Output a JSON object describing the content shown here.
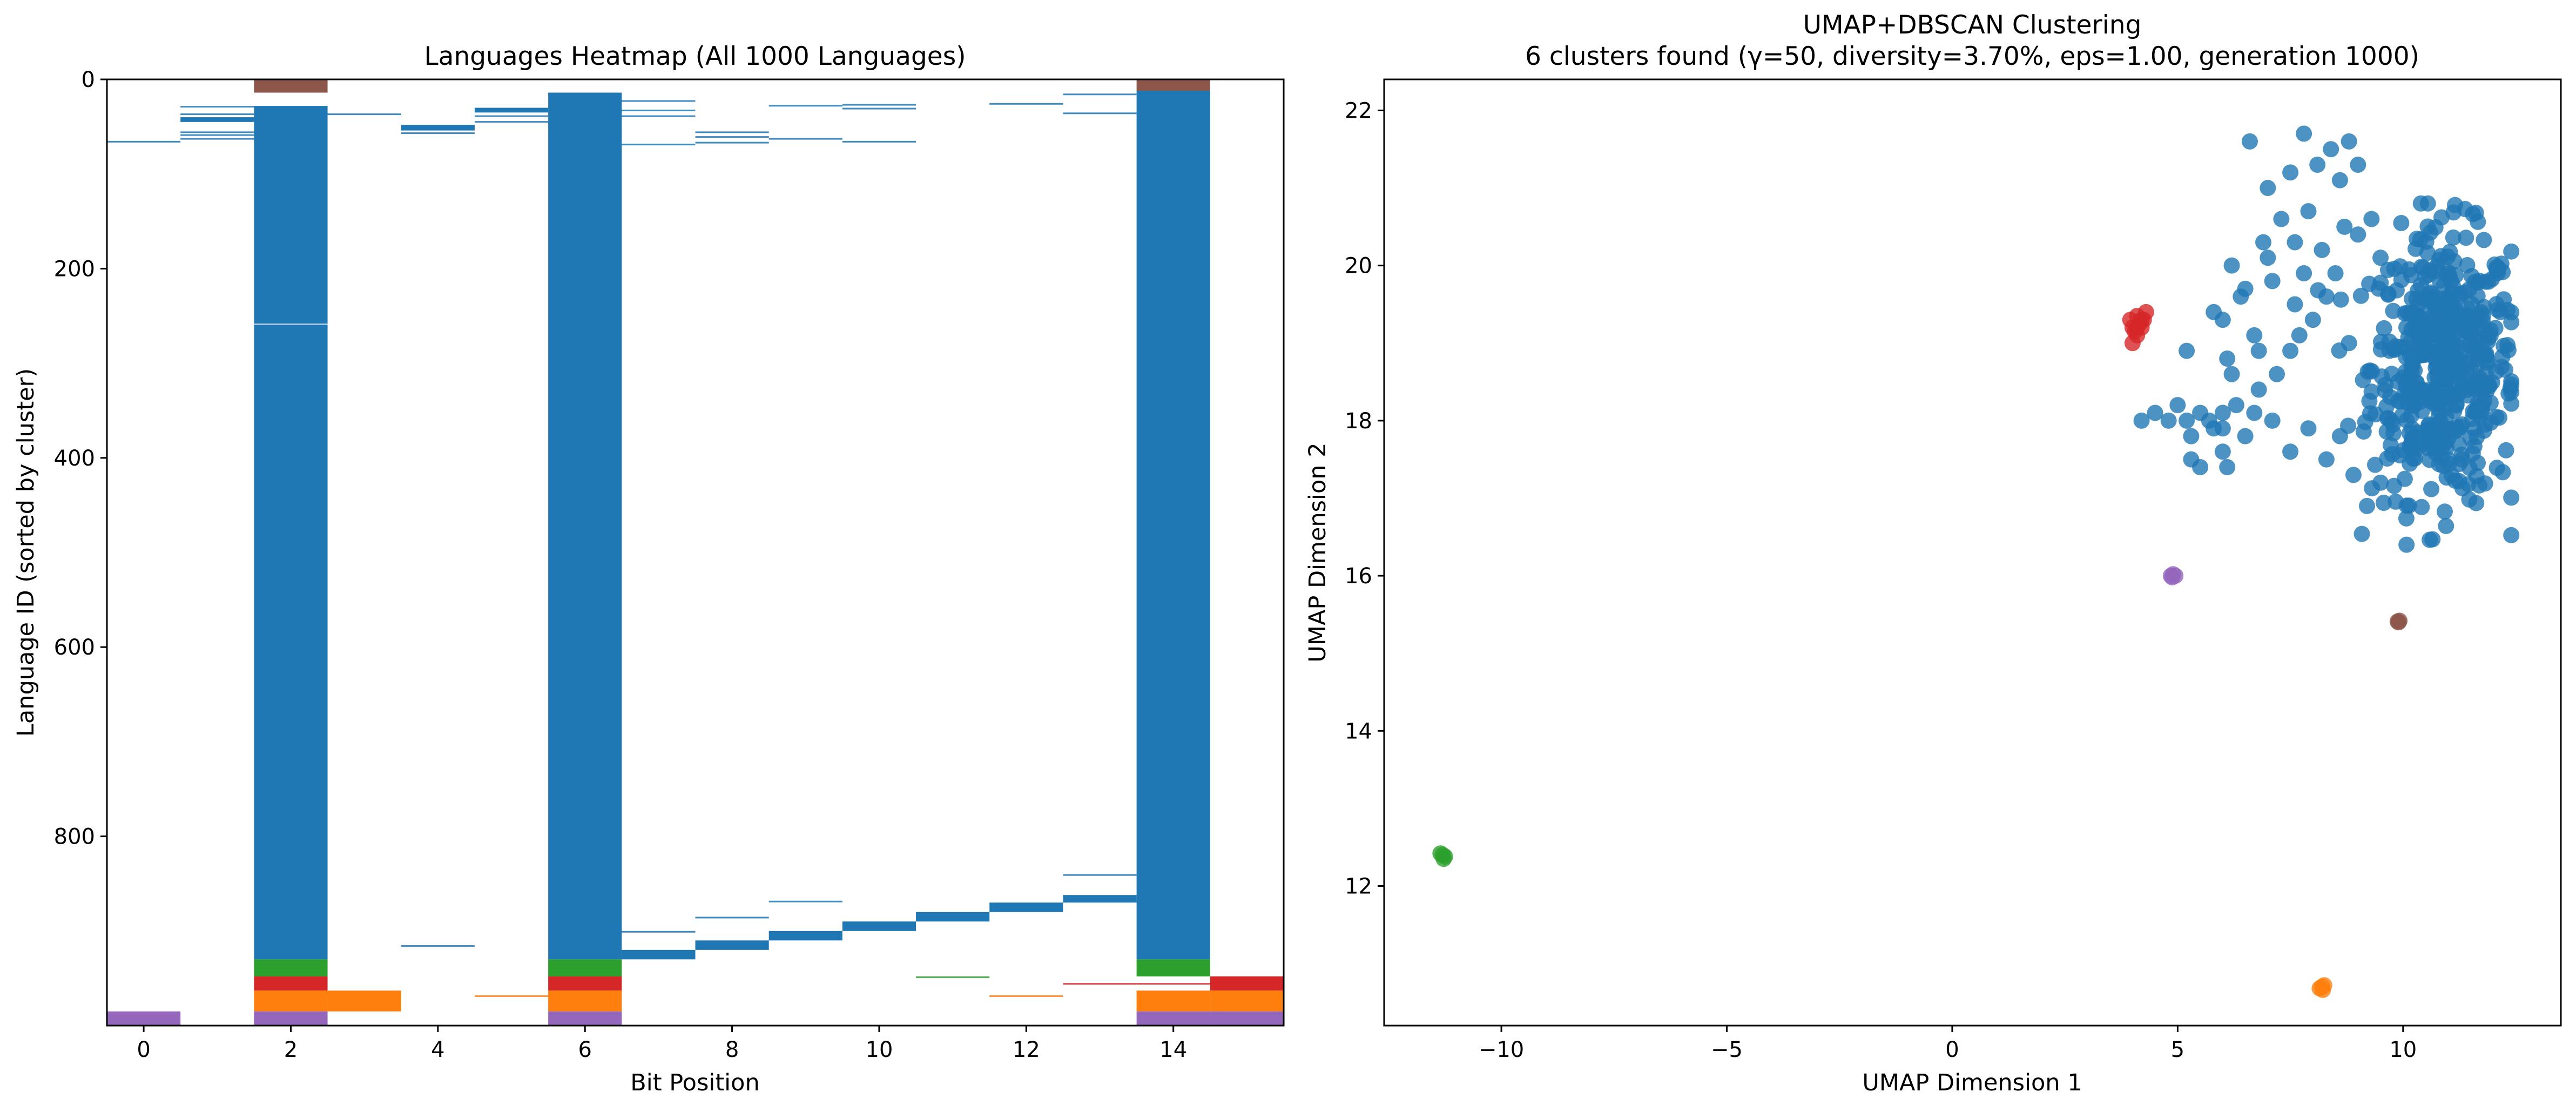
{
  "colors": {
    "main": "#1f77b4",
    "orange": "#ff7f0e",
    "green": "#2ca02c",
    "red": "#d62728",
    "purple": "#9467bd",
    "brown": "#8c564b"
  },
  "chart_data": [
    {
      "type": "heatmap",
      "title": "Languages Heatmap (All 1000 Languages)",
      "xlabel": "Bit Position",
      "ylabel": "Language ID (sorted by cluster)",
      "xlim": [
        -0.5,
        15.5
      ],
      "ylim": [
        1000,
        0
      ],
      "xticks": [
        0,
        2,
        4,
        6,
        8,
        10,
        12,
        14
      ],
      "yticks": [
        0,
        200,
        400,
        600,
        800
      ],
      "grid": false,
      "blocks": [
        {
          "bit": 2,
          "from": 0,
          "to": 14,
          "color": "brown"
        },
        {
          "bit": 14,
          "from": 0,
          "to": 12,
          "color": "brown"
        },
        {
          "bit": 2,
          "from": 28,
          "to": 930,
          "color": "main"
        },
        {
          "bit": 6,
          "from": 14,
          "to": 930,
          "color": "main"
        },
        {
          "bit": 14,
          "from": 12,
          "to": 930,
          "color": "main"
        },
        {
          "bit": 2,
          "from": 930,
          "to": 948,
          "color": "green"
        },
        {
          "bit": 6,
          "from": 930,
          "to": 948,
          "color": "green"
        },
        {
          "bit": 14,
          "from": 930,
          "to": 948,
          "color": "green"
        },
        {
          "bit": 2,
          "from": 948,
          "to": 963,
          "color": "red"
        },
        {
          "bit": 6,
          "from": 948,
          "to": 963,
          "color": "red"
        },
        {
          "bit": 15,
          "from": 948,
          "to": 963,
          "color": "red"
        },
        {
          "bit": 2,
          "from": 963,
          "to": 985,
          "color": "orange"
        },
        {
          "bit": 3,
          "from": 963,
          "to": 985,
          "color": "orange"
        },
        {
          "bit": 6,
          "from": 963,
          "to": 985,
          "color": "orange"
        },
        {
          "bit": 14,
          "from": 963,
          "to": 985,
          "color": "orange"
        },
        {
          "bit": 15,
          "from": 963,
          "to": 985,
          "color": "orange"
        },
        {
          "bit": 0,
          "from": 985,
          "to": 1000,
          "color": "purple"
        },
        {
          "bit": 2,
          "from": 985,
          "to": 1000,
          "color": "purple"
        },
        {
          "bit": 6,
          "from": 985,
          "to": 1000,
          "color": "purple"
        },
        {
          "bit": 14,
          "from": 985,
          "to": 1000,
          "color": "purple"
        },
        {
          "bit": 15,
          "from": 985,
          "to": 1000,
          "color": "purple"
        },
        {
          "bit": 7,
          "from": 920,
          "to": 930,
          "color": "main"
        },
        {
          "bit": 8,
          "from": 910,
          "to": 920,
          "color": "main"
        },
        {
          "bit": 9,
          "from": 900,
          "to": 910,
          "color": "main"
        },
        {
          "bit": 10,
          "from": 890,
          "to": 900,
          "color": "main"
        },
        {
          "bit": 11,
          "from": 880,
          "to": 890,
          "color": "main"
        },
        {
          "bit": 12,
          "from": 870,
          "to": 880,
          "color": "main"
        },
        {
          "bit": 13,
          "from": 862,
          "to": 870,
          "color": "main"
        },
        {
          "bit": 1,
          "from": 40,
          "to": 45,
          "color": "main"
        },
        {
          "bit": 4,
          "from": 48,
          "to": 54,
          "color": "main"
        },
        {
          "bit": 5,
          "from": 30,
          "to": 35,
          "color": "main"
        }
      ],
      "lines": [
        {
          "bit": 0,
          "row": 65,
          "color": "main"
        },
        {
          "bit": 1,
          "row": 28,
          "color": "main"
        },
        {
          "bit": 1,
          "row": 36,
          "color": "main"
        },
        {
          "bit": 1,
          "row": 55,
          "color": "main"
        },
        {
          "bit": 1,
          "row": 58,
          "color": "main"
        },
        {
          "bit": 1,
          "row": 62,
          "color": "main"
        },
        {
          "bit": 2,
          "row": 258,
          "color": "light"
        },
        {
          "bit": 3,
          "row": 36,
          "color": "main"
        },
        {
          "bit": 4,
          "row": 56,
          "color": "main"
        },
        {
          "bit": 4,
          "row": 915,
          "color": "main"
        },
        {
          "bit": 5,
          "row": 38,
          "color": "main"
        },
        {
          "bit": 5,
          "row": 44,
          "color": "main"
        },
        {
          "bit": 5,
          "row": 968,
          "color": "orange"
        },
        {
          "bit": 7,
          "row": 22,
          "color": "main"
        },
        {
          "bit": 7,
          "row": 32,
          "color": "main"
        },
        {
          "bit": 7,
          "row": 38,
          "color": "main"
        },
        {
          "bit": 7,
          "row": 68,
          "color": "main"
        },
        {
          "bit": 7,
          "row": 900,
          "color": "main"
        },
        {
          "bit": 8,
          "row": 55,
          "color": "main"
        },
        {
          "bit": 8,
          "row": 60,
          "color": "main"
        },
        {
          "bit": 8,
          "row": 66,
          "color": "main"
        },
        {
          "bit": 8,
          "row": 885,
          "color": "main"
        },
        {
          "bit": 9,
          "row": 27,
          "color": "main"
        },
        {
          "bit": 9,
          "row": 62,
          "color": "main"
        },
        {
          "bit": 9,
          "row": 868,
          "color": "main"
        },
        {
          "bit": 10,
          "row": 26,
          "color": "main"
        },
        {
          "bit": 10,
          "row": 30,
          "color": "main"
        },
        {
          "bit": 10,
          "row": 65,
          "color": "main"
        },
        {
          "bit": 11,
          "row": 948,
          "color": "green"
        },
        {
          "bit": 12,
          "row": 25,
          "color": "main"
        },
        {
          "bit": 12,
          "row": 968,
          "color": "orange"
        },
        {
          "bit": 13,
          "row": 15,
          "color": "main"
        },
        {
          "bit": 13,
          "row": 35,
          "color": "main"
        },
        {
          "bit": 13,
          "row": 840,
          "color": "main"
        },
        {
          "bit": 13,
          "row": 955,
          "color": "red"
        },
        {
          "bit": 14,
          "row": 955,
          "color": "red"
        }
      ]
    },
    {
      "type": "scatter",
      "title_line1": "UMAP+DBSCAN Clustering",
      "title_line2": "6 clusters found (γ=50, diversity=3.70%, eps=1.00, generation 1000)",
      "xlabel": "UMAP Dimension 1",
      "ylabel": "UMAP Dimension 2",
      "xlim": [
        -12.6,
        13.5
      ],
      "ylim": [
        10.2,
        22.4
      ],
      "xticks": [
        -10,
        -5,
        0,
        5,
        10
      ],
      "yticks": [
        12,
        14,
        16,
        18,
        20,
        22
      ],
      "grid": false,
      "series": [
        {
          "color": "main",
          "main_cloud": {
            "cx": 10.9,
            "cy": 18.7,
            "sx": 0.8,
            "sy": 0.85,
            "n": 520
          },
          "points": [
            [
              6.6,
              21.6
            ],
            [
              7.0,
              21.0
            ],
            [
              7.5,
              21.2
            ],
            [
              7.8,
              21.7
            ],
            [
              8.1,
              21.3
            ],
            [
              8.4,
              21.5
            ],
            [
              8.6,
              21.1
            ],
            [
              8.8,
              21.6
            ],
            [
              9.0,
              21.3
            ],
            [
              7.3,
              20.6
            ],
            [
              7.6,
              20.3
            ],
            [
              7.9,
              20.7
            ],
            [
              8.2,
              20.2
            ],
            [
              6.9,
              20.3
            ],
            [
              6.2,
              20.0
            ],
            [
              6.5,
              19.7
            ],
            [
              7.1,
              19.8
            ],
            [
              7.6,
              19.5
            ],
            [
              7.8,
              19.9
            ],
            [
              8.0,
              19.3
            ],
            [
              8.3,
              19.6
            ],
            [
              8.5,
              19.9
            ],
            [
              8.7,
              20.5
            ],
            [
              9.0,
              20.4
            ],
            [
              9.3,
              20.6
            ],
            [
              5.8,
              19.4
            ],
            [
              6.0,
              19.3
            ],
            [
              6.4,
              19.6
            ],
            [
              6.8,
              18.9
            ],
            [
              7.2,
              18.6
            ],
            [
              7.5,
              18.9
            ],
            [
              5.2,
              18.9
            ],
            [
              6.1,
              18.8
            ],
            [
              6.2,
              18.6
            ],
            [
              6.3,
              18.2
            ],
            [
              6.0,
              18.1
            ],
            [
              6.0,
              17.9
            ],
            [
              6.5,
              17.8
            ],
            [
              6.7,
              18.1
            ],
            [
              4.2,
              18.0
            ],
            [
              4.5,
              18.1
            ],
            [
              4.8,
              18.0
            ],
            [
              5.0,
              18.2
            ],
            [
              5.2,
              18.0
            ],
            [
              5.3,
              17.8
            ],
            [
              5.5,
              18.1
            ],
            [
              5.8,
              17.9
            ],
            [
              5.3,
              17.5
            ],
            [
              5.5,
              17.4
            ],
            [
              6.0,
              17.6
            ],
            [
              6.1,
              17.4
            ],
            [
              5.7,
              18.0
            ],
            [
              6.8,
              18.4
            ],
            [
              7.1,
              18.0
            ],
            [
              7.5,
              17.6
            ],
            [
              7.9,
              17.9
            ],
            [
              8.3,
              17.5
            ],
            [
              8.6,
              17.8
            ],
            [
              8.9,
              17.3
            ],
            [
              9.2,
              16.9
            ],
            [
              9.5,
              17.2
            ],
            [
              7.7,
              19.1
            ],
            [
              8.8,
              19.0
            ],
            [
              9.5,
              20.1
            ],
            [
              7.0,
              20.1
            ],
            [
              6.7,
              19.1
            ]
          ]
        },
        {
          "color": "red",
          "points": [
            [
              4.0,
              19.2
            ],
            [
              4.1,
              19.1
            ],
            [
              4.2,
              19.3
            ],
            [
              4.3,
              19.4
            ],
            [
              4.1,
              19.2
            ],
            [
              4.0,
              19.0
            ],
            [
              4.2,
              19.2
            ],
            [
              3.95,
              19.3
            ],
            [
              4.15,
              19.25
            ],
            [
              4.05,
              19.15
            ],
            [
              4.25,
              19.3
            ],
            [
              4.1,
              19.35
            ]
          ]
        },
        {
          "color": "purple",
          "points": [
            [
              4.85,
              16.0
            ],
            [
              4.9,
              16.02
            ],
            [
              4.95,
              16.0
            ],
            [
              4.88,
              15.98
            ]
          ]
        },
        {
          "color": "brown",
          "points": [
            [
              9.9,
              15.4
            ],
            [
              9.92,
              15.42
            ],
            [
              9.88,
              15.41
            ]
          ]
        },
        {
          "color": "green",
          "points": [
            [
              -11.3,
              12.4
            ],
            [
              -11.25,
              12.38
            ],
            [
              -11.35,
              12.42
            ],
            [
              -11.28,
              12.35
            ]
          ]
        },
        {
          "color": "orange",
          "points": [
            [
              8.2,
              10.7
            ],
            [
              8.25,
              10.72
            ],
            [
              8.15,
              10.68
            ],
            [
              8.22,
              10.66
            ]
          ]
        }
      ]
    }
  ]
}
